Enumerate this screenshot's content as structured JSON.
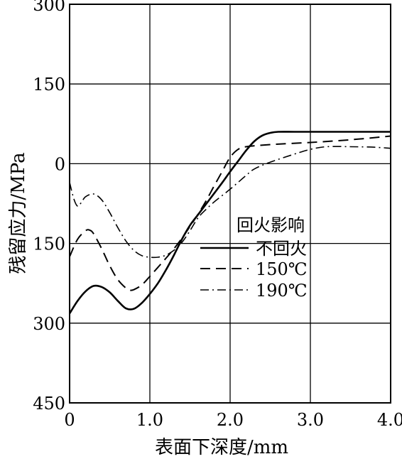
{
  "chart_data": {
    "type": "line",
    "xlabel": "表面下深度/mm",
    "ylabel": "残留应力/MPa",
    "xlim": [
      0,
      4.0
    ],
    "ylim": [
      -450,
      300
    ],
    "grid": true,
    "x_ticks": [
      {
        "value": 0,
        "label": "0"
      },
      {
        "value": 1.0,
        "label": "1.0"
      },
      {
        "value": 2.0,
        "label": "2.0"
      },
      {
        "value": 3.0,
        "label": "3.0"
      },
      {
        "value": 4.0,
        "label": "4.0"
      }
    ],
    "y_ticks": [
      {
        "value": 300,
        "label": "300"
      },
      {
        "value": 150,
        "label": "150"
      },
      {
        "value": 0,
        "label": "0"
      },
      {
        "value": -150,
        "label": "150"
      },
      {
        "value": -300,
        "label": "300"
      },
      {
        "value": -450,
        "label": "450"
      }
    ],
    "legend": {
      "title": "回火影响",
      "placement": "center-right"
    },
    "series": [
      {
        "name": "不回火",
        "style": "solid",
        "x": [
          0,
          0.1,
          0.2,
          0.3,
          0.4,
          0.5,
          0.6,
          0.7,
          0.8,
          0.9,
          1.0,
          1.1,
          1.2,
          1.3,
          1.4,
          1.5,
          1.6,
          1.7,
          1.8,
          1.9,
          2.0,
          2.1,
          2.2,
          2.3,
          2.4,
          2.5,
          2.6,
          2.8,
          3.0,
          3.5,
          4.0
        ],
        "y": [
          -282,
          -258,
          -240,
          -230,
          -232,
          -242,
          -258,
          -272,
          -273,
          -262,
          -245,
          -225,
          -200,
          -172,
          -142,
          -116,
          -96,
          -76,
          -56,
          -36,
          -15,
          5,
          25,
          42,
          53,
          58,
          60,
          60,
          60,
          60,
          60
        ]
      },
      {
        "name": "150℃",
        "style": "dashed",
        "x": [
          0,
          0.1,
          0.2,
          0.25,
          0.3,
          0.4,
          0.5,
          0.6,
          0.7,
          0.75,
          0.8,
          0.9,
          1.0,
          1.1,
          1.2,
          1.3,
          1.4,
          1.5,
          1.6,
          1.7,
          1.8,
          1.9,
          2.0,
          2.1,
          2.2,
          2.5,
          3.0,
          3.5,
          4.0
        ],
        "y": [
          -175,
          -142,
          -126,
          -125,
          -132,
          -160,
          -192,
          -218,
          -234,
          -238,
          -237,
          -228,
          -212,
          -195,
          -178,
          -160,
          -140,
          -118,
          -95,
          -70,
          -42,
          -15,
          12,
          27,
          32,
          36,
          40,
          45,
          52
        ]
      },
      {
        "name": "190℃",
        "style": "dashdot",
        "x": [
          0,
          0.05,
          0.1,
          0.15,
          0.2,
          0.3,
          0.4,
          0.5,
          0.6,
          0.7,
          0.8,
          0.9,
          1.0,
          1.1,
          1.2,
          1.3,
          1.4,
          1.5,
          1.6,
          1.7,
          1.8,
          1.9,
          2.0,
          2.1,
          2.2,
          2.3,
          2.5,
          2.8,
          3.0,
          3.2,
          3.5,
          3.8,
          4.0
        ],
        "y": [
          -35,
          -65,
          -80,
          -72,
          -62,
          -57,
          -68,
          -92,
          -120,
          -145,
          -163,
          -173,
          -176,
          -176,
          -172,
          -163,
          -148,
          -126,
          -102,
          -86,
          -72,
          -60,
          -48,
          -35,
          -22,
          -10,
          3,
          18,
          27,
          32,
          32,
          31,
          29
        ]
      }
    ]
  }
}
